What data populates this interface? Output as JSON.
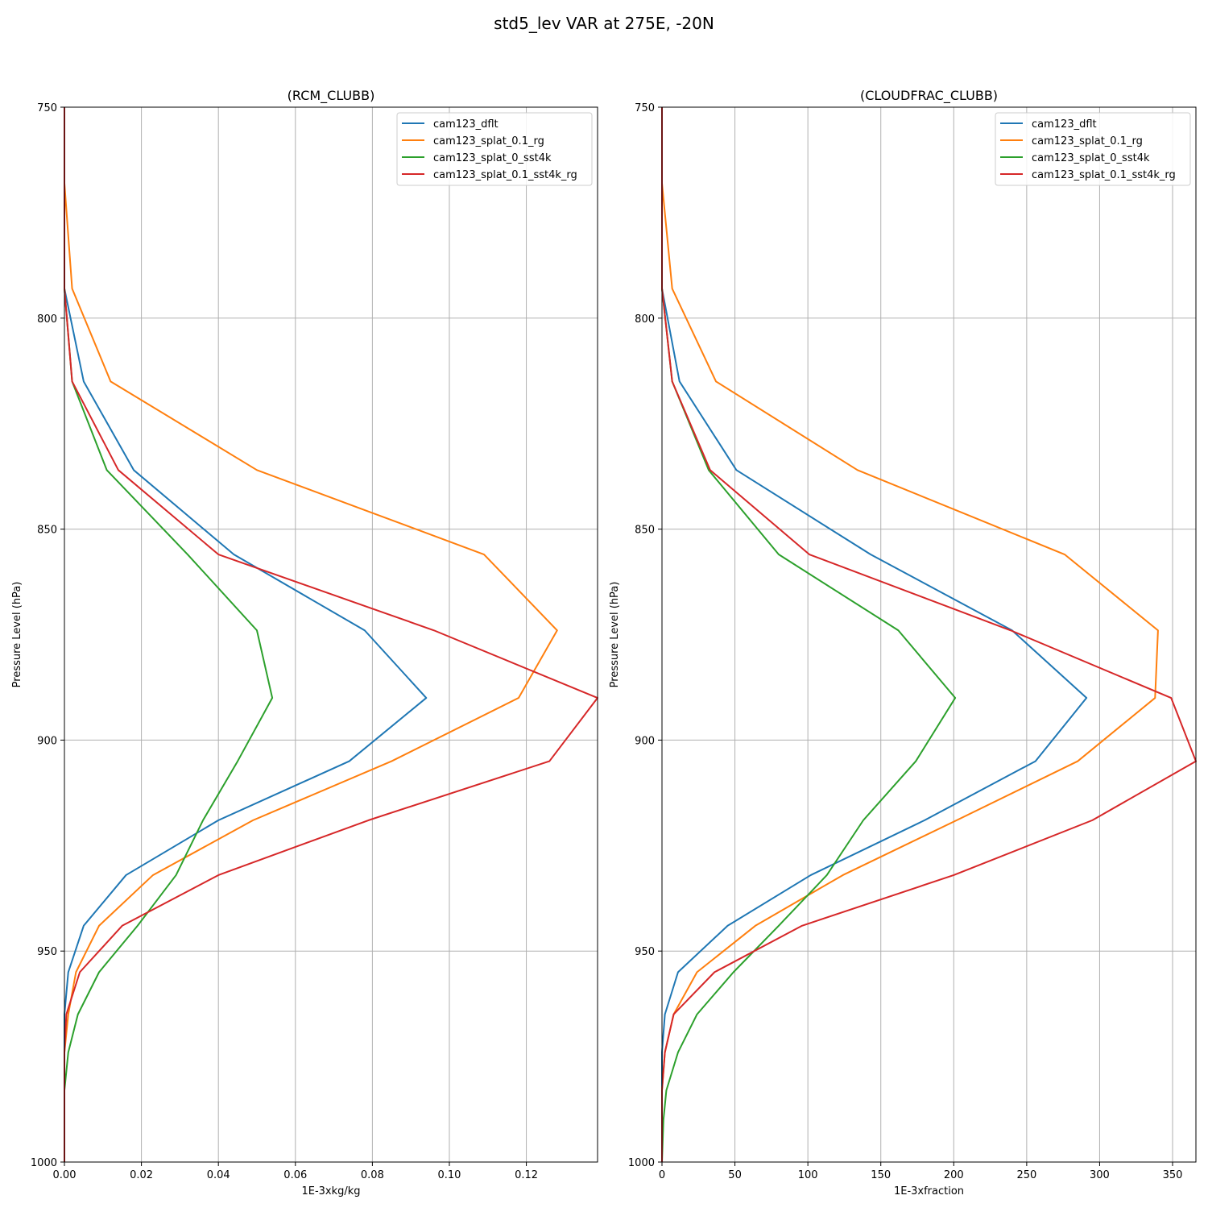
{
  "figure": {
    "title": "std5_lev VAR at 275E, -20N"
  },
  "series_colors": {
    "cam123_dflt": "#1f77b4",
    "cam123_splat_0.1_rg": "#ff7f0e",
    "cam123_splat_0_sst4k": "#2ca02c",
    "cam123_splat_0.1_sst4k_rg": "#d62728"
  },
  "chart_data": [
    {
      "type": "line",
      "title": "(RCM_CLUBB)",
      "xlabel": "1E-3xkg/kg",
      "ylabel": "Pressure Level (hPa)",
      "xlim": [
        0,
        0.1385
      ],
      "ylim": [
        750,
        1000
      ],
      "y_inverted": true,
      "grid": true,
      "legend_position": "top-right",
      "xticks": [
        0,
        0.02,
        0.04,
        0.06,
        0.08,
        0.1,
        0.12
      ],
      "xtick_labels": [
        "0.00",
        "0.02",
        "0.04",
        "0.06",
        "0.08",
        "0.10",
        "0.12"
      ],
      "yticks": [
        750,
        800,
        850,
        900,
        950,
        1000
      ],
      "ytick_labels": [
        "750",
        "800",
        "850",
        "900",
        "950",
        "1000"
      ],
      "levels": [
        750,
        768,
        793,
        815,
        836,
        856,
        874,
        890,
        905,
        919,
        932,
        944,
        955,
        965,
        974,
        983,
        1000
      ],
      "series": [
        {
          "name": "cam123_dflt",
          "values": [
            0,
            0,
            0,
            0.005,
            0.018,
            0.044,
            0.078,
            0.094,
            0.074,
            0.04,
            0.016,
            0.005,
            0.001,
            0,
            0,
            0,
            0
          ]
        },
        {
          "name": "cam123_splat_0.1_rg",
          "values": [
            0,
            0,
            0.002,
            0.012,
            0.05,
            0.109,
            0.128,
            0.118,
            0.085,
            0.049,
            0.023,
            0.009,
            0.003,
            0.001,
            0,
            0,
            0
          ]
        },
        {
          "name": "cam123_splat_0_sst4k",
          "values": [
            0,
            0,
            0,
            0.002,
            0.011,
            0.032,
            0.05,
            0.054,
            0.045,
            0.036,
            0.029,
            0.019,
            0.009,
            0.0035,
            0.001,
            0,
            0
          ]
        },
        {
          "name": "cam123_splat_0.1_sst4k_rg",
          "values": [
            0,
            0,
            0,
            0.002,
            0.014,
            0.04,
            0.096,
            0.1385,
            0.126,
            0.079,
            0.04,
            0.015,
            0.004,
            0.0005,
            0,
            0,
            0
          ]
        }
      ]
    },
    {
      "type": "line",
      "title": "(CLOUDFRAC_CLUBB)",
      "xlabel": "1E-3xfraction",
      "ylabel": "Pressure Level (hPa)",
      "xlim": [
        0,
        366
      ],
      "ylim": [
        750,
        1000
      ],
      "y_inverted": true,
      "grid": true,
      "legend_position": "top-right",
      "xticks": [
        0,
        50,
        100,
        150,
        200,
        250,
        300,
        350
      ],
      "xtick_labels": [
        "0",
        "50",
        "100",
        "150",
        "200",
        "250",
        "300",
        "350"
      ],
      "yticks": [
        750,
        800,
        850,
        900,
        950,
        1000
      ],
      "ytick_labels": [
        "750",
        "800",
        "850",
        "900",
        "950",
        "1000"
      ],
      "levels": [
        750,
        768,
        793,
        815,
        836,
        856,
        874,
        890,
        905,
        919,
        932,
        944,
        955,
        965,
        974,
        983,
        990,
        1000
      ],
      "series": [
        {
          "name": "cam123_dflt",
          "values": [
            0,
            0,
            0,
            12,
            51,
            143,
            240,
            291,
            256,
            180,
            102,
            45,
            11,
            2,
            0,
            0,
            0,
            0
          ]
        },
        {
          "name": "cam123_splat_0.1_rg",
          "values": [
            0,
            0,
            7,
            37,
            134,
            276,
            340,
            338,
            285,
            202,
            124,
            64,
            24,
            8,
            2,
            0,
            0,
            0
          ]
        },
        {
          "name": "cam123_splat_0_sst4k",
          "values": [
            0,
            0,
            0,
            7,
            32,
            80,
            162,
            201,
            174,
            138,
            113,
            80,
            49,
            24,
            11,
            3,
            1,
            0
          ]
        },
        {
          "name": "cam123_splat_0.1_sst4k_rg",
          "values": [
            0,
            0,
            0,
            7,
            33,
            101,
            239,
            349,
            366,
            295,
            200,
            96,
            36,
            8,
            2,
            0,
            0,
            0
          ]
        }
      ]
    }
  ]
}
